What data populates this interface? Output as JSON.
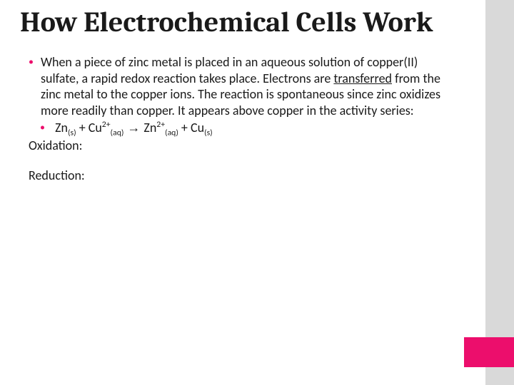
{
  "colors": {
    "accent": "#ec0e6c",
    "sidebar": "#d9d9d9",
    "background": "#ffffff",
    "text": "#1a1a1a"
  },
  "typography": {
    "title_font": "Cambria, Georgia, serif",
    "body_font": "Calibri, Segoe UI, Arial, sans-serif",
    "title_size_pt": 30,
    "body_size_pt": 14
  },
  "title": "How Electrochemical Cells Work",
  "bullets": {
    "b1_pre": "When a piece of zinc metal is placed in an aqueous solution of copper(II) sulfate, a rapid redox reaction takes place. Electrons are ",
    "b1_underlined": "transferred",
    "b1_post": " from the zinc metal to the copper ions. The reaction is spontaneous since zinc oxidizes more readily than copper. It appears above copper in the activity series:",
    "equation": {
      "zn_s": "Zn",
      "plus1": " + ",
      "cu2plus": "Cu",
      "arrow": " → ",
      "zn2plus": "Zn",
      "plus2": " + ",
      "cu_s": "Cu",
      "state_s": "(s)",
      "state_aq": "(aq)",
      "charge": "2+"
    }
  },
  "labels": {
    "oxidation": "Oxidation:",
    "reduction": "Reduction:"
  }
}
